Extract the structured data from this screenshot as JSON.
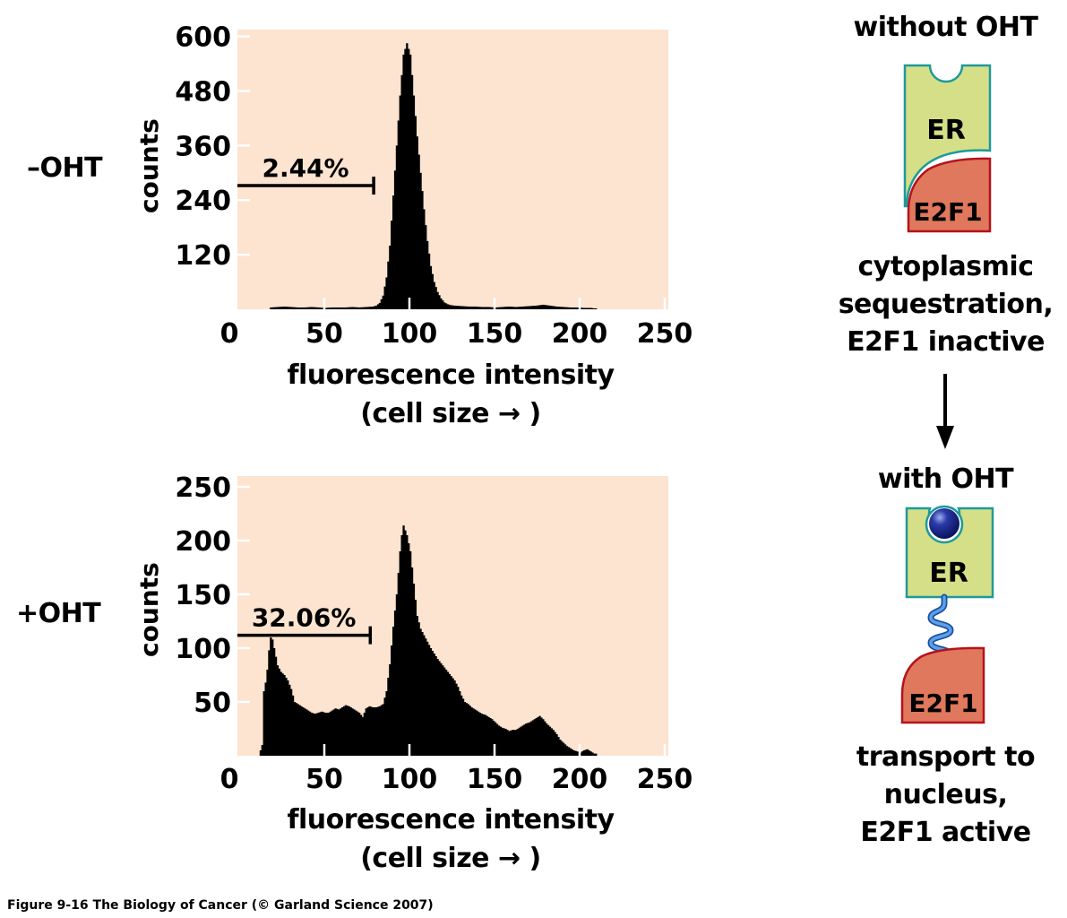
{
  "chart_data": [
    {
      "type": "bar",
      "id": "minus-oht",
      "condition_label": "–OHT",
      "title": "",
      "xlabel": "fluorescence intensity",
      "xlabel_sub": "(cell size → )",
      "ylabel": "counts",
      "xlim": [
        0,
        255
      ],
      "ylim": [
        0,
        615
      ],
      "x_ticks": [
        0,
        50,
        100,
        150,
        200,
        250
      ],
      "y_ticks": [
        120,
        240,
        360,
        480,
        600
      ],
      "bracket": {
        "label": "2.44%",
        "x_from": 0,
        "x_to": 79,
        "y": 272
      },
      "background": "#fce4d0",
      "bar_color": "#000000",
      "x": [
        18,
        22,
        26,
        30,
        34,
        38,
        42,
        46,
        50,
        54,
        58,
        62,
        66,
        70,
        74,
        78,
        80,
        82,
        84,
        86,
        88,
        90,
        92,
        94,
        96,
        98,
        100,
        102,
        104,
        106,
        108,
        110,
        112,
        114,
        116,
        118,
        120,
        122,
        124,
        126,
        130,
        134,
        138,
        142,
        146,
        150,
        154,
        158,
        162,
        166,
        170,
        174,
        178,
        182,
        186,
        190,
        194,
        198,
        202,
        206,
        208
      ],
      "values": [
        4,
        5,
        6,
        5,
        4,
        4,
        5,
        4,
        3,
        4,
        4,
        4,
        5,
        4,
        5,
        6,
        8,
        14,
        30,
        70,
        140,
        250,
        360,
        470,
        560,
        585,
        560,
        470,
        380,
        300,
        220,
        150,
        95,
        60,
        38,
        24,
        15,
        11,
        9,
        8,
        7,
        6,
        6,
        5,
        5,
        4,
        5,
        6,
        5,
        6,
        7,
        8,
        10,
        8,
        6,
        5,
        4,
        4,
        3,
        3,
        2
      ]
    },
    {
      "type": "bar",
      "id": "plus-oht",
      "condition_label": "+OHT",
      "title": "",
      "xlabel": "fluorescence intensity",
      "xlabel_sub": "(cell size → )",
      "ylabel": "counts",
      "xlim": [
        0,
        255
      ],
      "ylim": [
        0,
        260
      ],
      "x_ticks": [
        0,
        50,
        100,
        150,
        200,
        250
      ],
      "y_ticks": [
        50,
        100,
        150,
        200,
        250
      ],
      "bracket": {
        "label": "32.06%",
        "x_from": 0,
        "x_to": 77,
        "y": 112
      },
      "background": "#fce4d0",
      "bar_color": "#000000",
      "x": [
        12,
        13,
        14,
        15,
        16,
        17,
        18,
        19,
        20,
        21,
        22,
        24,
        26,
        28,
        30,
        32,
        34,
        36,
        38,
        40,
        42,
        44,
        46,
        48,
        50,
        52,
        54,
        56,
        58,
        60,
        62,
        64,
        66,
        68,
        70,
        72,
        74,
        76,
        78,
        80,
        82,
        84,
        86,
        88,
        90,
        92,
        94,
        95,
        96,
        98,
        100,
        102,
        104,
        106,
        108,
        110,
        112,
        114,
        116,
        118,
        120,
        122,
        124,
        126,
        128,
        130,
        132,
        134,
        136,
        138,
        140,
        142,
        144,
        146,
        148,
        150,
        152,
        154,
        156,
        158,
        160,
        162,
        164,
        166,
        168,
        170,
        172,
        174,
        176,
        178,
        180,
        182,
        184,
        186,
        188,
        190,
        192,
        194,
        196,
        198,
        200,
        202,
        204,
        206,
        208
      ],
      "values": [
        5,
        10,
        60,
        68,
        80,
        98,
        110,
        108,
        100,
        92,
        84,
        78,
        75,
        70,
        62,
        50,
        48,
        46,
        44,
        42,
        40,
        39,
        40,
        41,
        40,
        40,
        42,
        44,
        43,
        45,
        47,
        46,
        44,
        42,
        40,
        36,
        44,
        46,
        45,
        45,
        46,
        48,
        60,
        85,
        120,
        150,
        190,
        205,
        214,
        205,
        190,
        160,
        130,
        118,
        112,
        106,
        100,
        95,
        90,
        86,
        82,
        78,
        74,
        70,
        64,
        56,
        50,
        48,
        45,
        43,
        41,
        39,
        38,
        36,
        34,
        31,
        28,
        26,
        25,
        23,
        24,
        24,
        26,
        28,
        30,
        31,
        33,
        35,
        37,
        34,
        30,
        27,
        24,
        20,
        15,
        12,
        9,
        7,
        5,
        4,
        3,
        5,
        6,
        4,
        2
      ]
    }
  ],
  "diagram": {
    "top": {
      "heading": "without OHT",
      "er_label": "ER",
      "e2f1_label": "E2F1",
      "caption_lines": [
        "cytoplasmic",
        "sequestration,",
        "E2F1 inactive"
      ]
    },
    "bottom": {
      "heading": "with OHT",
      "er_label": "ER",
      "e2f1_label": "E2F1",
      "caption_lines": [
        "transport to",
        "nucleus,",
        "E2F1 active"
      ]
    },
    "colors": {
      "er_fill": "#d5df87",
      "er_stroke": "#1e9a9a",
      "e2f1_fill": "#df785c",
      "e2f1_stroke": "#b5121b",
      "ligand": "#1a2a8c",
      "linker": "#3b82d6"
    }
  },
  "footer": {
    "caption": "Figure 9-16  The Biology of Cancer (© Garland Science 2007)"
  }
}
